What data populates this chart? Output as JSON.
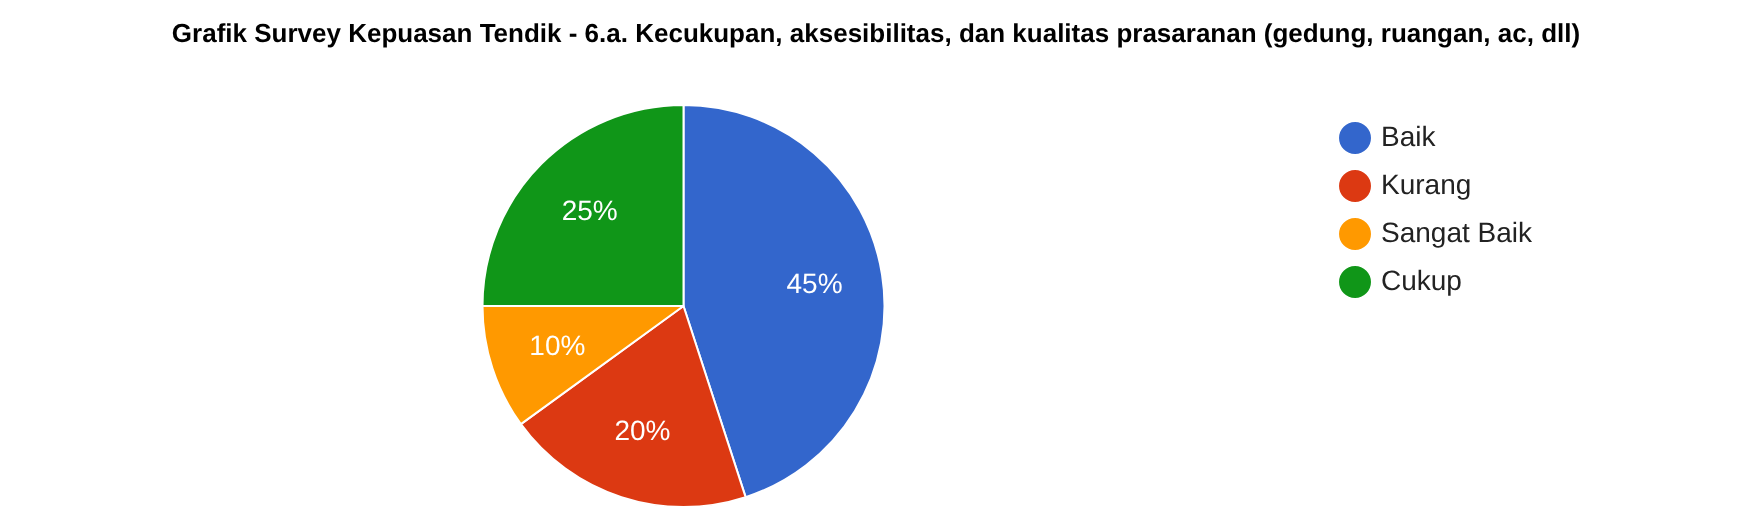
{
  "chart_data": {
    "type": "pie",
    "title": "Grafik Survey Kepuasan Tendik - 6.a. Kecukupan, aksesibilitas, dan kualitas prasaranan (gedung, ruangan, ac, dll)",
    "categories": [
      "Baik",
      "Kurang",
      "Sangat Baik",
      "Cukup"
    ],
    "values": [
      45,
      20,
      10,
      25
    ],
    "value_labels": [
      "45%",
      "20%",
      "10%",
      "25%"
    ],
    "colors": [
      "#3366cc",
      "#dc3912",
      "#ff9900",
      "#109618"
    ],
    "legend": "right"
  }
}
